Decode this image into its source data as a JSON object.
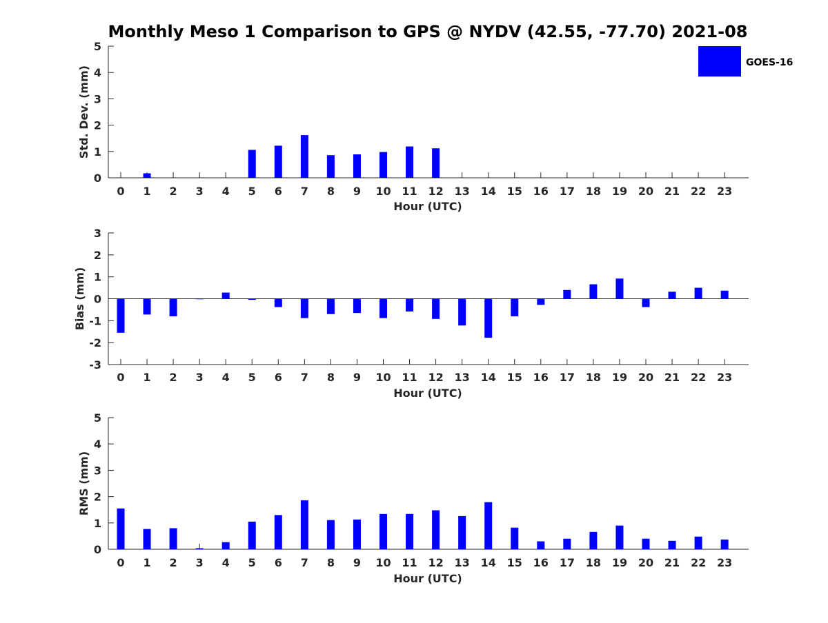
{
  "chart_data": {
    "type": "bar",
    "title": "Monthly Meso 1 Comparison to GPS @ NYDV (42.55, -77.70) 2021-08",
    "bar_color": "#0000ff",
    "legend": {
      "entries": [
        "GOES-16"
      ],
      "placement": "top-right"
    },
    "categories": [
      "0",
      "1",
      "2",
      "3",
      "4",
      "5",
      "6",
      "7",
      "8",
      "9",
      "10",
      "11",
      "12",
      "13",
      "14",
      "15",
      "16",
      "17",
      "18",
      "19",
      "20",
      "21",
      "22",
      "23"
    ],
    "panels": [
      {
        "id": "std",
        "ylabel": "Std. Dev. (mm)",
        "xlabel": "Hour (UTC)",
        "ylim": [
          0,
          5
        ],
        "yticks": [
          0,
          1,
          2,
          3,
          4,
          5
        ],
        "series": [
          {
            "name": "GOES-16",
            "values": [
              0,
              0.17,
              0,
              0,
              0,
              1.06,
              1.22,
              1.62,
              0.86,
              0.89,
              0.98,
              1.19,
              1.12,
              0,
              0,
              0,
              0,
              0,
              0,
              0,
              0,
              0,
              0,
              0
            ]
          }
        ]
      },
      {
        "id": "bias",
        "ylabel": "Bias (mm)",
        "xlabel": "Hour (UTC)",
        "ylim": [
          -3,
          3
        ],
        "yticks": [
          -3,
          -2,
          -1,
          0,
          1,
          2,
          3
        ],
        "zero_line": true,
        "series": [
          {
            "name": "GOES-16",
            "values": [
              -1.55,
              -0.72,
              -0.8,
              -0.02,
              0.28,
              -0.05,
              -0.38,
              -0.88,
              -0.7,
              -0.65,
              -0.88,
              -0.58,
              -0.92,
              -1.22,
              -1.78,
              -0.8,
              -0.28,
              0.4,
              0.66,
              0.92,
              -0.38,
              0.32,
              0.5,
              0.37
            ]
          }
        ]
      },
      {
        "id": "rms",
        "ylabel": "RMS (mm)",
        "xlabel": "Hour (UTC)",
        "ylim": [
          0,
          5
        ],
        "yticks": [
          0,
          1,
          2,
          3,
          4,
          5
        ],
        "series": [
          {
            "name": "GOES-16",
            "values": [
              1.55,
              0.77,
              0.8,
              0.04,
              0.27,
              1.05,
              1.3,
              1.86,
              1.11,
              1.13,
              1.34,
              1.34,
              1.48,
              1.26,
              1.79,
              0.82,
              0.3,
              0.4,
              0.66,
              0.9,
              0.4,
              0.32,
              0.48,
              0.37
            ]
          }
        ]
      }
    ]
  }
}
